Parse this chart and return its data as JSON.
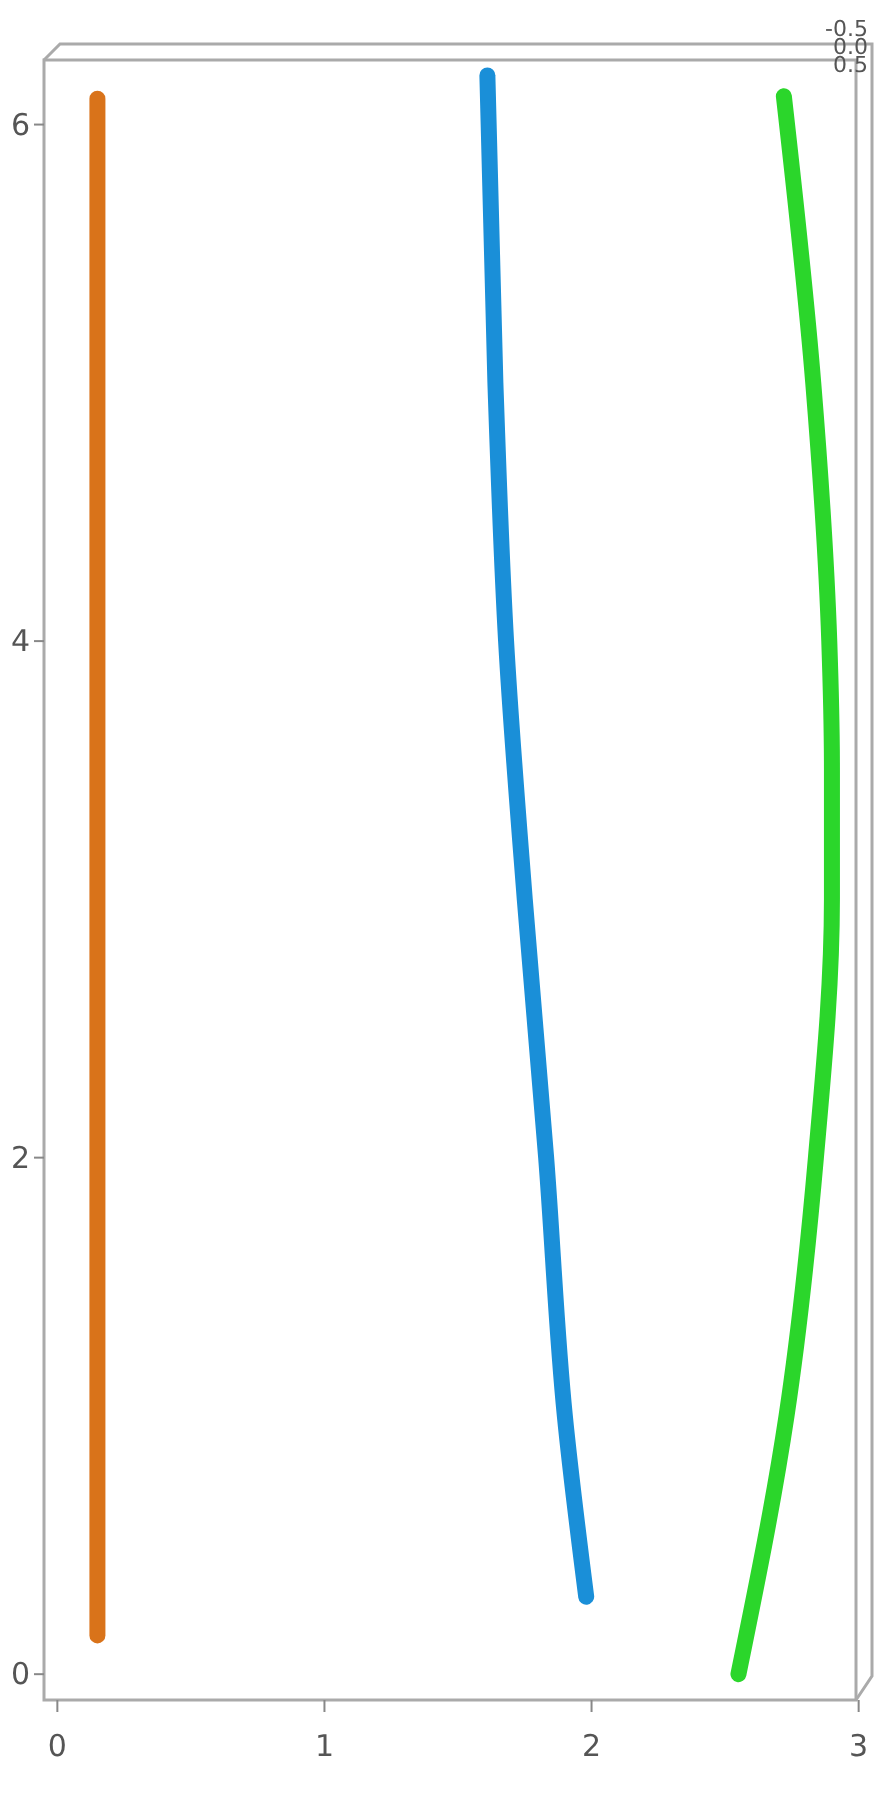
{
  "chart_data": {
    "type": "line",
    "xlim": [
      -0.05,
      3.05
    ],
    "ylim": [
      -0.1,
      6.25
    ],
    "xticks": [
      0,
      1,
      2,
      3
    ],
    "yticks": [
      0,
      2,
      4,
      6
    ],
    "grid": false,
    "marker": "none",
    "line_style": "solid",
    "annotations": [
      "-0.5",
      "0.0",
      "0.5"
    ],
    "series": [
      {
        "color": "#d9731a",
        "x": [
          0.15,
          0.15
        ],
        "values": [
          0.15,
          6.1
        ]
      },
      {
        "color": "#1a8fd8",
        "x": [
          1.61,
          1.64,
          1.68,
          1.75,
          1.83,
          1.9,
          1.98
        ],
        "values": [
          6.19,
          5,
          4,
          3,
          2,
          1,
          0.3
        ]
      },
      {
        "color": "#2bd62b",
        "x": [
          2.72,
          2.83,
          2.89,
          2.9,
          2.9,
          2.84,
          2.73,
          2.55
        ],
        "values": [
          6.11,
          5,
          4,
          3.5,
          3,
          2,
          1,
          0
        ]
      }
    ]
  }
}
